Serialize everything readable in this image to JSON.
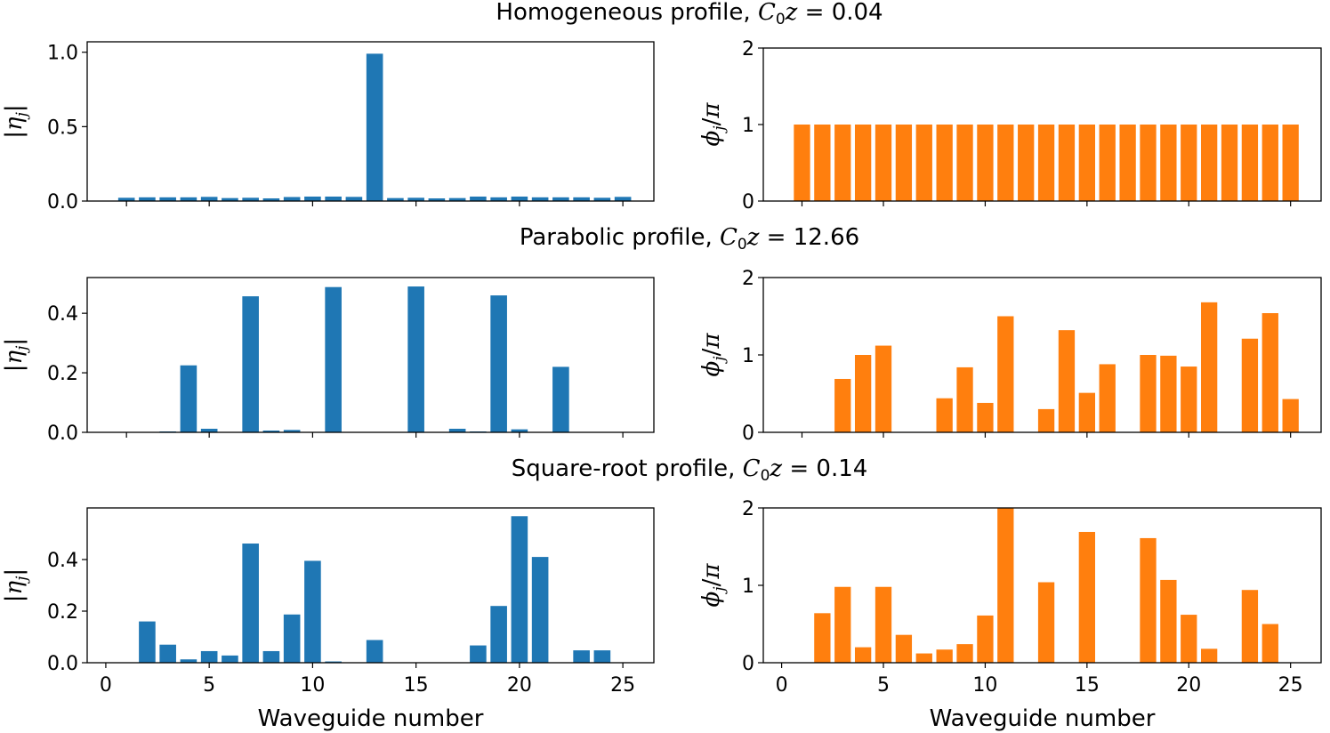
{
  "figure": {
    "row_titles": [
      {
        "text": "Homogeneous profile, ",
        "math": "C",
        "sub": "0",
        "math2": "z",
        "rest": " = 0.04"
      },
      {
        "text": "Parabolic profile, ",
        "math": "C",
        "sub": "0",
        "math2": "z",
        "rest": " = 12.66"
      },
      {
        "text": "Square-root profile, ",
        "math": "C",
        "sub": "0",
        "math2": "z",
        "rest": " = 0.14"
      }
    ],
    "left_ylabel": {
      "pre": "|",
      "sym": "η",
      "sub": "j",
      "post": "|"
    },
    "right_ylabel": {
      "sym": "ϕ",
      "sub": "j",
      "post": "/",
      "sym2": "π"
    },
    "xlabel": "Waveguide number",
    "colors": {
      "left_bars": "#1f77b4",
      "right_bars": "#ff7f0e"
    }
  },
  "chart_data": [
    {
      "type": "bar",
      "panel": "row1-left",
      "x": [
        1,
        2,
        3,
        4,
        5,
        6,
        7,
        8,
        9,
        10,
        11,
        12,
        13,
        14,
        15,
        16,
        17,
        18,
        19,
        20,
        21,
        22,
        23,
        24,
        25
      ],
      "values": [
        0.022,
        0.025,
        0.025,
        0.025,
        0.028,
        0.02,
        0.022,
        0.018,
        0.027,
        0.03,
        0.03,
        0.028,
        0.99,
        0.02,
        0.022,
        0.018,
        0.02,
        0.03,
        0.025,
        0.03,
        0.025,
        0.025,
        0.025,
        0.022,
        0.028
      ],
      "ylim": [
        0,
        1.07
      ],
      "yticks": [
        0.0,
        0.5,
        1.0
      ],
      "ytick_labels": [
        "0.0",
        "0.5",
        "1.0"
      ],
      "xlim": [
        -0.9,
        26.5
      ],
      "xticks": [
        1,
        5,
        10,
        15,
        20,
        25
      ],
      "xtick_labels": []
    },
    {
      "type": "bar",
      "panel": "row1-right",
      "x": [
        1,
        2,
        3,
        4,
        5,
        6,
        7,
        8,
        9,
        10,
        11,
        12,
        13,
        14,
        15,
        16,
        17,
        18,
        19,
        20,
        21,
        22,
        23,
        24,
        25
      ],
      "values": [
        1,
        1,
        1,
        1,
        1,
        1,
        1,
        1,
        1,
        1,
        1,
        1,
        1,
        1,
        1,
        1,
        1,
        1,
        1,
        1,
        1,
        1,
        1,
        1,
        1
      ],
      "ylim": [
        0,
        2.0
      ],
      "yticks": [
        0,
        1,
        2
      ],
      "ytick_labels": [
        "0",
        "1",
        "2"
      ],
      "xlim": [
        -0.9,
        26.5
      ],
      "xticks": [
        1,
        5,
        10,
        15,
        20,
        25
      ],
      "xtick_labels": []
    },
    {
      "type": "bar",
      "panel": "row2-left",
      "x": [
        1,
        2,
        3,
        4,
        5,
        6,
        7,
        8,
        9,
        10,
        11,
        12,
        13,
        14,
        15,
        16,
        17,
        18,
        19,
        20,
        21,
        22,
        23,
        24,
        25
      ],
      "values": [
        0,
        0,
        0.003,
        0.225,
        0.012,
        0,
        0.457,
        0.006,
        0.008,
        0,
        0.488,
        0,
        0,
        0,
        0.49,
        0,
        0.012,
        0.003,
        0.46,
        0.01,
        0,
        0.22,
        0,
        0,
        0
      ],
      "ylim": [
        0,
        0.52
      ],
      "yticks": [
        0.0,
        0.2,
        0.4
      ],
      "ytick_labels": [
        "0.0",
        "0.2",
        "0.4"
      ],
      "xlim": [
        -0.9,
        26.5
      ],
      "xticks": [
        1,
        5,
        10,
        15,
        20,
        25
      ],
      "xtick_labels": []
    },
    {
      "type": "bar",
      "panel": "row2-right",
      "x": [
        1,
        2,
        3,
        4,
        5,
        6,
        7,
        8,
        9,
        10,
        11,
        12,
        13,
        14,
        15,
        16,
        17,
        18,
        19,
        20,
        21,
        22,
        23,
        24,
        25
      ],
      "values": [
        0,
        0,
        0.69,
        1.0,
        1.12,
        0,
        0,
        0.44,
        0.84,
        0.38,
        1.5,
        0,
        0.3,
        1.32,
        0.51,
        0.88,
        0,
        1.0,
        0.99,
        0.85,
        1.68,
        0,
        1.21,
        1.54,
        0.43
      ],
      "ylim": [
        0,
        2.0
      ],
      "yticks": [
        0,
        1,
        2
      ],
      "ytick_labels": [
        "0",
        "1",
        "2"
      ],
      "xlim": [
        -0.9,
        26.5
      ],
      "xticks": [
        1,
        5,
        10,
        15,
        20,
        25
      ],
      "xtick_labels": []
    },
    {
      "type": "bar",
      "panel": "row3-left",
      "x": [
        1,
        2,
        3,
        4,
        5,
        6,
        7,
        8,
        9,
        10,
        11,
        12,
        13,
        14,
        15,
        16,
        17,
        18,
        19,
        20,
        21,
        22,
        23,
        24,
        25
      ],
      "values": [
        0,
        0.16,
        0.07,
        0.013,
        0.045,
        0.028,
        0.462,
        0.045,
        0.187,
        0.395,
        0.005,
        0,
        0.088,
        0,
        0,
        0,
        0,
        0.067,
        0.22,
        0.568,
        0.41,
        0,
        0.048,
        0.048,
        0
      ],
      "ylim": [
        0,
        0.6
      ],
      "yticks": [
        0.0,
        0.2,
        0.4
      ],
      "ytick_labels": [
        "0.0",
        "0.2",
        "0.4"
      ],
      "xlim": [
        -0.9,
        26.5
      ],
      "xticks": [
        0,
        5,
        10,
        15,
        20,
        25
      ],
      "xtick_labels": [
        "0",
        "5",
        "10",
        "15",
        "20",
        "25"
      ]
    },
    {
      "type": "bar",
      "panel": "row3-right",
      "x": [
        1,
        2,
        3,
        4,
        5,
        6,
        7,
        8,
        9,
        10,
        11,
        12,
        13,
        14,
        15,
        16,
        17,
        18,
        19,
        20,
        21,
        22,
        23,
        24,
        25
      ],
      "values": [
        0,
        0.64,
        0.98,
        0.2,
        0.98,
        0.36,
        0.12,
        0.17,
        0.24,
        0.61,
        2.0,
        0,
        1.04,
        0,
        1.69,
        0,
        0,
        1.61,
        1.07,
        0.62,
        0.18,
        0,
        0.94,
        0.5,
        0
      ],
      "ylim": [
        0,
        2.0
      ],
      "yticks": [
        0,
        1,
        2
      ],
      "ytick_labels": [
        "0",
        "1",
        "2"
      ],
      "xlim": [
        -0.9,
        26.5
      ],
      "xticks": [
        0,
        5,
        10,
        15,
        20,
        25
      ],
      "xtick_labels": [
        "0",
        "5",
        "10",
        "15",
        "20",
        "25"
      ]
    }
  ]
}
